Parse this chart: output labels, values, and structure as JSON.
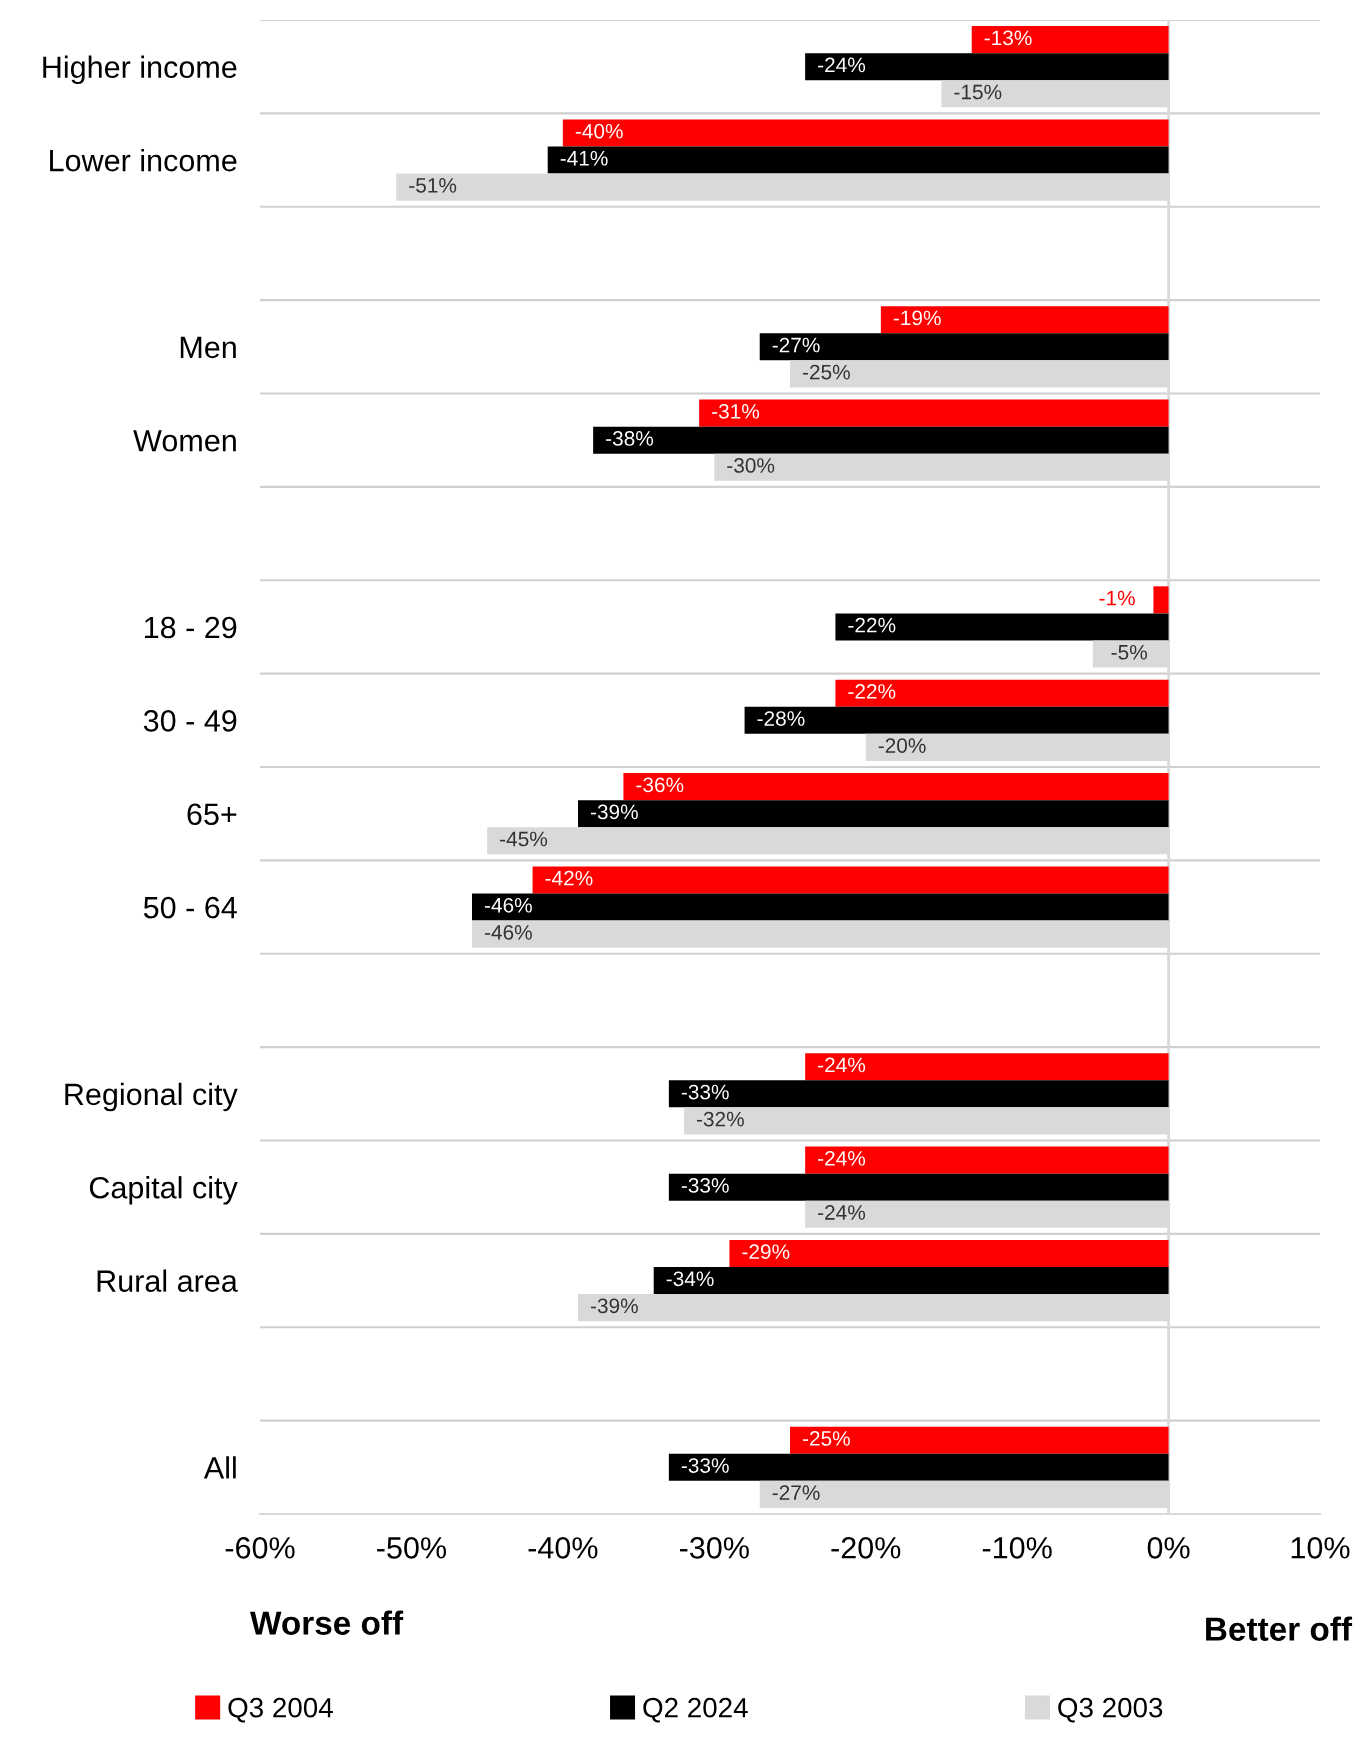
{
  "chart_data": {
    "type": "bar",
    "orientation": "horizontal",
    "categories": [
      "Higher income",
      "Lower income",
      null,
      "Men",
      "Women",
      null,
      "18 - 29",
      "30 - 49",
      "65+",
      "50 - 64",
      null,
      "Regional city",
      "Capital city",
      "Rural area",
      null,
      "All"
    ],
    "series": [
      {
        "name": "Q3 2004",
        "color": "#ff0000",
        "values": [
          -13,
          -40,
          null,
          -19,
          -31,
          null,
          -1,
          -22,
          -36,
          -42,
          null,
          -24,
          -24,
          -29,
          null,
          -25
        ],
        "value_labels": [
          "-13%",
          "-40%",
          null,
          "-19%",
          "-31%",
          null,
          "-1%",
          "-22%",
          "-36%",
          "-42%",
          null,
          "-24%",
          "-24%",
          "-29%",
          null,
          "-25%"
        ]
      },
      {
        "name": "Q2 2024",
        "color": "#000000",
        "values": [
          -24,
          -41,
          null,
          -27,
          -38,
          null,
          -22,
          -28,
          -39,
          -46,
          null,
          -33,
          -33,
          -34,
          null,
          -33
        ],
        "value_labels": [
          "-24%",
          "-41%",
          null,
          "-27%",
          "-38%",
          null,
          "-22%",
          "-28%",
          "-39%",
          "-46%",
          null,
          "-33%",
          "-33%",
          "-34%",
          null,
          "-33%"
        ]
      },
      {
        "name": "Q3 2003",
        "color": "#d9d9d9",
        "values": [
          -15,
          -51,
          null,
          -25,
          -30,
          null,
          -5,
          -20,
          -45,
          -46,
          null,
          -32,
          -24,
          -39,
          null,
          -27
        ],
        "value_labels": [
          "-15%",
          "-51%",
          null,
          "-25%",
          "-30%",
          null,
          "-5%",
          "-20%",
          "-45%",
          "-46%",
          null,
          "-32%",
          "-24%",
          "-39%",
          null,
          "-27%"
        ]
      }
    ],
    "xlim": [
      -60,
      10
    ],
    "xticks": [
      {
        "value": -60,
        "label": "-60%"
      },
      {
        "value": -50,
        "label": "-50%"
      },
      {
        "value": -40,
        "label": "-40%"
      },
      {
        "value": -30,
        "label": "-30%"
      },
      {
        "value": -20,
        "label": "-20%"
      },
      {
        "value": -10,
        "label": "-10%"
      },
      {
        "value": 0,
        "label": "0%"
      },
      {
        "value": 10,
        "label": "10%"
      }
    ],
    "ref_lines": [
      {
        "axis": "x",
        "value": 0,
        "color": "#d9d9d9"
      }
    ],
    "annotations": [
      "Worse off",
      "Better off"
    ],
    "grid": "y",
    "legend": "bottom"
  }
}
